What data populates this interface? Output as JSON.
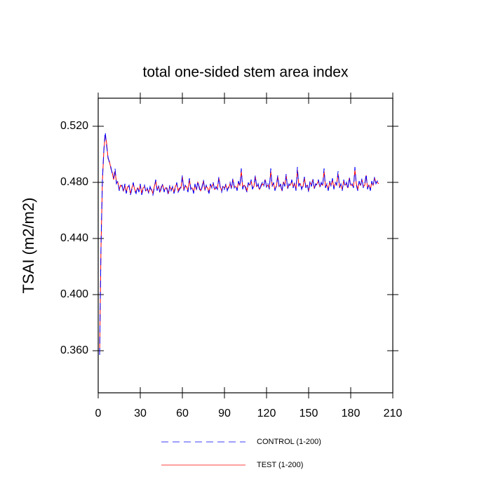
{
  "chart_data": {
    "type": "line",
    "title": "total one-sided stem area index",
    "ylabel": "TSAI  (m2/m2)",
    "xlim": [
      0,
      210
    ],
    "xticks": [
      0,
      30,
      60,
      90,
      120,
      150,
      180,
      210
    ],
    "ylim": [
      0.33,
      0.54
    ],
    "yticks": [
      {
        "value": 0.36,
        "label": "0.360"
      },
      {
        "value": 0.4,
        "label": "0.400"
      },
      {
        "value": 0.44,
        "label": "0.440"
      },
      {
        "value": 0.48,
        "label": "0.480"
      },
      {
        "value": 0.52,
        "label": "0.520"
      }
    ],
    "x": [
      1,
      2,
      3,
      4,
      5,
      6,
      7,
      8,
      9,
      10,
      11,
      12,
      13,
      14,
      15,
      16,
      17,
      18,
      19,
      20,
      21,
      22,
      23,
      24,
      25,
      26,
      27,
      28,
      29,
      30,
      31,
      32,
      33,
      34,
      35,
      36,
      37,
      38,
      39,
      40,
      41,
      42,
      43,
      44,
      45,
      46,
      47,
      48,
      49,
      50,
      51,
      52,
      53,
      54,
      55,
      56,
      57,
      58,
      59,
      60,
      61,
      62,
      63,
      64,
      65,
      66,
      67,
      68,
      69,
      70,
      71,
      72,
      73,
      74,
      75,
      76,
      77,
      78,
      79,
      80,
      81,
      82,
      83,
      84,
      85,
      86,
      87,
      88,
      89,
      90,
      91,
      92,
      93,
      94,
      95,
      96,
      97,
      98,
      99,
      100,
      101,
      102,
      103,
      104,
      105,
      106,
      107,
      108,
      109,
      110,
      111,
      112,
      113,
      114,
      115,
      116,
      117,
      118,
      119,
      120,
      121,
      122,
      123,
      124,
      125,
      126,
      127,
      128,
      129,
      130,
      131,
      132,
      133,
      134,
      135,
      136,
      137,
      138,
      139,
      140,
      141,
      142,
      143,
      144,
      145,
      146,
      147,
      148,
      149,
      150,
      151,
      152,
      153,
      154,
      155,
      156,
      157,
      158,
      159,
      160,
      161,
      162,
      163,
      164,
      165,
      166,
      167,
      168,
      169,
      170,
      171,
      172,
      173,
      174,
      175,
      176,
      177,
      178,
      179,
      180,
      181,
      182,
      183,
      184,
      185,
      186,
      187,
      188,
      189,
      190,
      191,
      192,
      193,
      194,
      195,
      196,
      197,
      198,
      199,
      200
    ],
    "series": [
      {
        "name": "CONTROL (1-200)",
        "color": "#0000ff",
        "dash": true,
        "values": [
          0.357,
          0.435,
          0.482,
          0.503,
          0.516,
          0.506,
          0.498,
          0.494,
          0.491,
          0.486,
          0.483,
          0.49,
          0.479,
          0.481,
          0.474,
          0.477,
          0.478,
          0.473,
          0.479,
          0.472,
          0.476,
          0.478,
          0.471,
          0.475,
          0.48,
          0.474,
          0.472,
          0.477,
          0.473,
          0.479,
          0.471,
          0.475,
          0.478,
          0.473,
          0.476,
          0.472,
          0.477,
          0.474,
          0.471,
          0.476,
          0.482,
          0.474,
          0.478,
          0.472,
          0.476,
          0.479,
          0.473,
          0.477,
          0.475,
          0.471,
          0.478,
          0.474,
          0.477,
          0.472,
          0.476,
          0.48,
          0.473,
          0.475,
          0.477,
          0.485,
          0.474,
          0.478,
          0.476,
          0.473,
          0.483,
          0.475,
          0.477,
          0.472,
          0.479,
          0.474,
          0.481,
          0.476,
          0.473,
          0.477,
          0.482,
          0.474,
          0.478,
          0.475,
          0.472,
          0.479,
          0.476,
          0.48,
          0.474,
          0.477,
          0.475,
          0.484,
          0.476,
          0.473,
          0.478,
          0.475,
          0.479,
          0.474,
          0.477,
          0.48,
          0.475,
          0.483,
          0.476,
          0.478,
          0.474,
          0.481,
          0.477,
          0.49,
          0.475,
          0.479,
          0.476,
          0.473,
          0.48,
          0.477,
          0.482,
          0.475,
          0.478,
          0.485,
          0.476,
          0.479,
          0.474,
          0.478,
          0.48,
          0.477,
          0.483,
          0.476,
          0.479,
          0.475,
          0.49,
          0.477,
          0.48,
          0.474,
          0.478,
          0.485,
          0.476,
          0.479,
          0.473,
          0.481,
          0.477,
          0.486,
          0.475,
          0.479,
          0.477,
          0.482,
          0.476,
          0.48,
          0.474,
          0.491,
          0.477,
          0.48,
          0.475,
          0.478,
          0.484,
          0.476,
          0.479,
          0.473,
          0.481,
          0.477,
          0.483,
          0.475,
          0.479,
          0.478,
          0.482,
          0.476,
          0.48,
          0.477,
          0.49,
          0.476,
          0.479,
          0.474,
          0.481,
          0.477,
          0.483,
          0.475,
          0.48,
          0.478,
          0.488,
          0.476,
          0.479,
          0.474,
          0.482,
          0.477,
          0.48,
          0.475,
          0.484,
          0.477,
          0.479,
          0.476,
          0.491,
          0.478,
          0.474,
          0.481,
          0.477,
          0.483,
          0.476,
          0.479,
          0.486,
          0.475,
          0.479,
          0.474,
          0.481,
          0.477,
          0.484,
          0.479,
          0.481,
          0.478
        ]
      },
      {
        "name": "TEST (1-200)",
        "color": "#ff0000",
        "dash": false,
        "values": [
          0.357,
          0.434,
          0.481,
          0.502,
          0.514,
          0.508,
          0.497,
          0.495,
          0.49,
          0.487,
          0.482,
          0.488,
          0.48,
          0.48,
          0.475,
          0.478,
          0.477,
          0.474,
          0.478,
          0.473,
          0.477,
          0.477,
          0.472,
          0.476,
          0.479,
          0.475,
          0.473,
          0.476,
          0.474,
          0.478,
          0.472,
          0.476,
          0.477,
          0.474,
          0.475,
          0.473,
          0.476,
          0.475,
          0.472,
          0.477,
          0.481,
          0.475,
          0.477,
          0.473,
          0.477,
          0.478,
          0.474,
          0.476,
          0.476,
          0.472,
          0.477,
          0.475,
          0.476,
          0.473,
          0.477,
          0.479,
          0.474,
          0.476,
          0.476,
          0.484,
          0.475,
          0.477,
          0.477,
          0.474,
          0.482,
          0.476,
          0.476,
          0.473,
          0.478,
          0.475,
          0.48,
          0.477,
          0.474,
          0.476,
          0.481,
          0.475,
          0.477,
          0.476,
          0.473,
          0.478,
          0.477,
          0.479,
          0.475,
          0.476,
          0.476,
          0.483,
          0.477,
          0.474,
          0.477,
          0.476,
          0.478,
          0.475,
          0.476,
          0.479,
          0.476,
          0.482,
          0.477,
          0.477,
          0.475,
          0.48,
          0.478,
          0.488,
          0.476,
          0.478,
          0.477,
          0.474,
          0.479,
          0.478,
          0.481,
          0.476,
          0.477,
          0.484,
          0.477,
          0.478,
          0.475,
          0.477,
          0.479,
          0.478,
          0.482,
          0.477,
          0.478,
          0.476,
          0.488,
          0.478,
          0.479,
          0.475,
          0.477,
          0.484,
          0.477,
          0.478,
          0.474,
          0.48,
          0.478,
          0.485,
          0.476,
          0.478,
          0.478,
          0.481,
          0.477,
          0.479,
          0.475,
          0.489,
          0.478,
          0.479,
          0.476,
          0.477,
          0.483,
          0.477,
          0.478,
          0.474,
          0.48,
          0.478,
          0.482,
          0.476,
          0.478,
          0.479,
          0.481,
          0.477,
          0.479,
          0.478,
          0.488,
          0.477,
          0.478,
          0.475,
          0.48,
          0.478,
          0.482,
          0.476,
          0.479,
          0.479,
          0.486,
          0.477,
          0.478,
          0.475,
          0.481,
          0.478,
          0.479,
          0.476,
          0.483,
          0.478,
          0.478,
          0.477,
          0.489,
          0.479,
          0.475,
          0.48,
          0.478,
          0.482,
          0.477,
          0.478,
          0.485,
          0.476,
          0.478,
          0.475,
          0.48,
          0.478,
          0.483,
          0.48,
          0.48,
          0.479
        ]
      }
    ]
  }
}
